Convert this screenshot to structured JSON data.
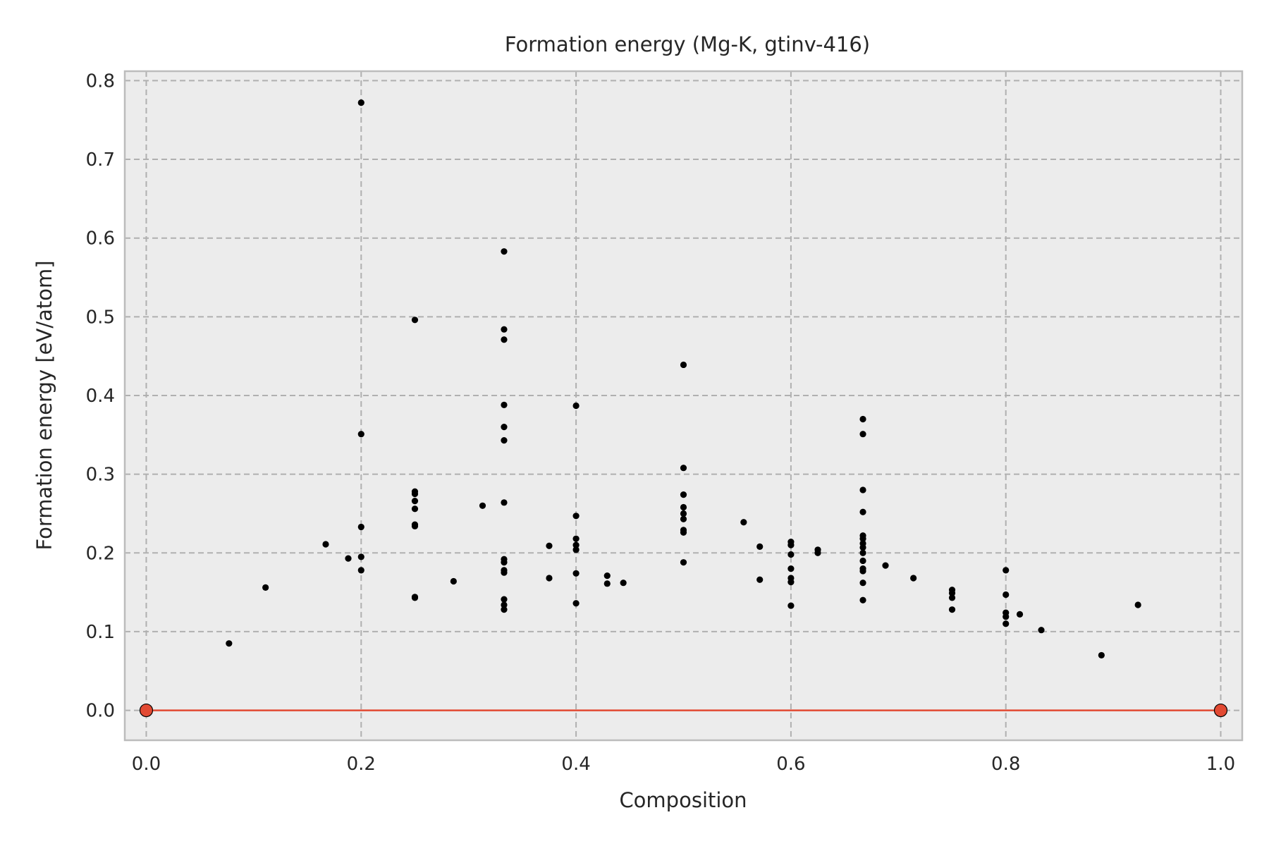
{
  "chart_data": {
    "type": "scatter",
    "title": "Formation energy (Mg-K, gtinv-416)",
    "xlabel": "Composition",
    "ylabel": "Formation energy [eV/atom]",
    "xlim": [
      -0.02,
      1.02
    ],
    "ylim": [
      -0.038,
      0.812
    ],
    "xticks": [
      "0.0",
      "0.2",
      "0.4",
      "0.6",
      "0.8",
      "1.0"
    ],
    "yticks": [
      "0.0",
      "0.1",
      "0.2",
      "0.3",
      "0.4",
      "0.5",
      "0.6",
      "0.7",
      "0.8"
    ],
    "grid": true,
    "colors": {
      "background": "#ececec",
      "frame": "#bcbcbc",
      "grid": "#b0b0b0",
      "points": "#000000",
      "hull": "#e24a33"
    },
    "series": [
      {
        "kind": "points",
        "points": [
          [
            0.077,
            0.085
          ],
          [
            0.111,
            0.156
          ],
          [
            0.167,
            0.211
          ],
          [
            0.188,
            0.193
          ],
          [
            0.2,
            0.772
          ],
          [
            0.2,
            0.351
          ],
          [
            0.2,
            0.233
          ],
          [
            0.2,
            0.195
          ],
          [
            0.2,
            0.178
          ],
          [
            0.25,
            0.496
          ],
          [
            0.25,
            0.278
          ],
          [
            0.25,
            0.275
          ],
          [
            0.25,
            0.266
          ],
          [
            0.25,
            0.256
          ],
          [
            0.25,
            0.236
          ],
          [
            0.25,
            0.234
          ],
          [
            0.25,
            0.144
          ],
          [
            0.25,
            0.143
          ],
          [
            0.286,
            0.164
          ],
          [
            0.313,
            0.26
          ],
          [
            0.333,
            0.583
          ],
          [
            0.333,
            0.484
          ],
          [
            0.333,
            0.471
          ],
          [
            0.333,
            0.388
          ],
          [
            0.333,
            0.36
          ],
          [
            0.333,
            0.343
          ],
          [
            0.333,
            0.264
          ],
          [
            0.333,
            0.192
          ],
          [
            0.333,
            0.188
          ],
          [
            0.333,
            0.178
          ],
          [
            0.333,
            0.175
          ],
          [
            0.333,
            0.141
          ],
          [
            0.333,
            0.134
          ],
          [
            0.333,
            0.128
          ],
          [
            0.375,
            0.209
          ],
          [
            0.375,
            0.168
          ],
          [
            0.4,
            0.387
          ],
          [
            0.4,
            0.247
          ],
          [
            0.4,
            0.218
          ],
          [
            0.4,
            0.21
          ],
          [
            0.4,
            0.204
          ],
          [
            0.4,
            0.174
          ],
          [
            0.4,
            0.136
          ],
          [
            0.429,
            0.171
          ],
          [
            0.429,
            0.161
          ],
          [
            0.444,
            0.162
          ],
          [
            0.5,
            0.439
          ],
          [
            0.5,
            0.308
          ],
          [
            0.5,
            0.274
          ],
          [
            0.5,
            0.258
          ],
          [
            0.5,
            0.25
          ],
          [
            0.5,
            0.243
          ],
          [
            0.5,
            0.229
          ],
          [
            0.5,
            0.226
          ],
          [
            0.5,
            0.188
          ],
          [
            0.556,
            0.239
          ],
          [
            0.571,
            0.208
          ],
          [
            0.571,
            0.166
          ],
          [
            0.6,
            0.214
          ],
          [
            0.6,
            0.21
          ],
          [
            0.6,
            0.198
          ],
          [
            0.6,
            0.18
          ],
          [
            0.6,
            0.168
          ],
          [
            0.6,
            0.163
          ],
          [
            0.6,
            0.133
          ],
          [
            0.625,
            0.204
          ],
          [
            0.625,
            0.2
          ],
          [
            0.667,
            0.37
          ],
          [
            0.667,
            0.351
          ],
          [
            0.667,
            0.28
          ],
          [
            0.667,
            0.252
          ],
          [
            0.667,
            0.222
          ],
          [
            0.667,
            0.218
          ],
          [
            0.667,
            0.212
          ],
          [
            0.667,
            0.207
          ],
          [
            0.667,
            0.2
          ],
          [
            0.667,
            0.19
          ],
          [
            0.667,
            0.18
          ],
          [
            0.667,
            0.177
          ],
          [
            0.667,
            0.162
          ],
          [
            0.667,
            0.14
          ],
          [
            0.688,
            0.184
          ],
          [
            0.714,
            0.168
          ],
          [
            0.75,
            0.153
          ],
          [
            0.75,
            0.149
          ],
          [
            0.75,
            0.143
          ],
          [
            0.75,
            0.128
          ],
          [
            0.8,
            0.178
          ],
          [
            0.8,
            0.147
          ],
          [
            0.8,
            0.124
          ],
          [
            0.8,
            0.119
          ],
          [
            0.8,
            0.11
          ],
          [
            0.813,
            0.122
          ],
          [
            0.833,
            0.102
          ],
          [
            0.889,
            0.07
          ],
          [
            0.923,
            0.134
          ]
        ]
      },
      {
        "kind": "hull",
        "points": [
          [
            0.0,
            0.0
          ],
          [
            1.0,
            0.0
          ]
        ]
      }
    ]
  }
}
